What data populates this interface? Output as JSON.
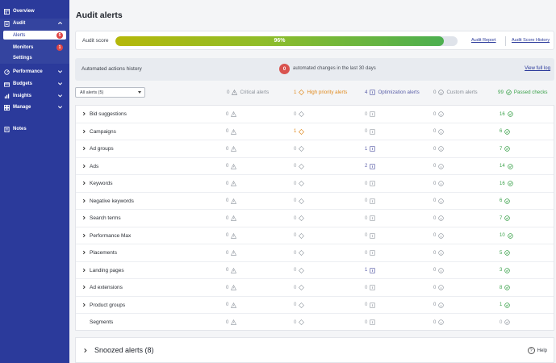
{
  "sidebar": {
    "overview": "Overview",
    "audit": "Audit",
    "alerts": "Alerts",
    "alerts_badge": "5",
    "monitors": "Monitors",
    "monitors_badge": "1",
    "settings": "Settings",
    "performance": "Performance",
    "budgets": "Budgets",
    "insights": "Insights",
    "manage": "Manage",
    "notes": "Notes"
  },
  "page": {
    "title": "Audit alerts"
  },
  "score": {
    "label": "Audit score",
    "value": "96%",
    "percent": 96,
    "report_link": "Audit Report",
    "history_link": "Audit Score History"
  },
  "automated": {
    "title": "Automated actions history",
    "count": "0",
    "text": "automated changes in the last 30 days",
    "link": "View full log"
  },
  "filter": {
    "value": "All alerts (5)"
  },
  "headers": {
    "critical": {
      "count": "0",
      "label": "Critical alerts"
    },
    "high": {
      "count": "1",
      "label": "High priority alerts"
    },
    "optimization": {
      "count": "4",
      "label": "Optimization alerts"
    },
    "custom": {
      "count": "0",
      "label": "Custom alerts"
    },
    "passed": {
      "count": "99",
      "label": "Passed checks"
    }
  },
  "rows": [
    {
      "name": "Bid suggestions",
      "critical": "0",
      "high": "0",
      "opt": "0",
      "custom": "0",
      "passed": "16",
      "expandable": true
    },
    {
      "name": "Campaigns",
      "critical": "0",
      "high": "1",
      "opt": "0",
      "custom": "0",
      "passed": "6",
      "expandable": true
    },
    {
      "name": "Ad groups",
      "critical": "0",
      "high": "0",
      "opt": "1",
      "custom": "0",
      "passed": "7",
      "expandable": true
    },
    {
      "name": "Ads",
      "critical": "0",
      "high": "0",
      "opt": "2",
      "custom": "0",
      "passed": "14",
      "expandable": true
    },
    {
      "name": "Keywords",
      "critical": "0",
      "high": "0",
      "opt": "0",
      "custom": "0",
      "passed": "16",
      "expandable": true
    },
    {
      "name": "Negative keywords",
      "critical": "0",
      "high": "0",
      "opt": "0",
      "custom": "0",
      "passed": "6",
      "expandable": true
    },
    {
      "name": "Search terms",
      "critical": "0",
      "high": "0",
      "opt": "0",
      "custom": "0",
      "passed": "7",
      "expandable": true
    },
    {
      "name": "Performance Max",
      "critical": "0",
      "high": "0",
      "opt": "0",
      "custom": "0",
      "passed": "10",
      "expandable": true
    },
    {
      "name": "Placements",
      "critical": "0",
      "high": "0",
      "opt": "0",
      "custom": "0",
      "passed": "5",
      "expandable": true
    },
    {
      "name": "Landing pages",
      "critical": "0",
      "high": "0",
      "opt": "1",
      "custom": "0",
      "passed": "3",
      "expandable": true
    },
    {
      "name": "Ad extensions",
      "critical": "0",
      "high": "0",
      "opt": "0",
      "custom": "0",
      "passed": "8",
      "expandable": true
    },
    {
      "name": "Product groups",
      "critical": "0",
      "high": "0",
      "opt": "0",
      "custom": "0",
      "passed": "1",
      "expandable": true
    },
    {
      "name": "Segments",
      "critical": "0",
      "high": "0",
      "opt": "0",
      "custom": "0",
      "passed": "0",
      "expandable": false
    }
  ],
  "snoozed": {
    "title": "Snoozed alerts (8)"
  },
  "help": "Help",
  "colors": {
    "sidebar": "#2b3a9b",
    "high_priority": "#e08a1e",
    "optimization": "#5a5fa8",
    "passed": "#3aa14a",
    "badge": "#e04545"
  }
}
